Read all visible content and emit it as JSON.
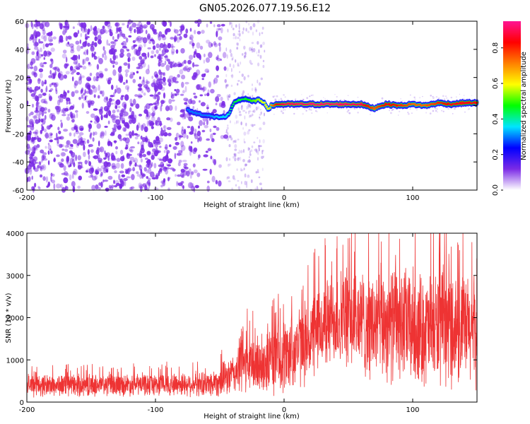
{
  "figure_title": "GN05.2026.077.19.56.E12",
  "chart_data": [
    {
      "type": "heatmap",
      "title": "GN05.2026.077.19.56.E12",
      "xlabel": "Height of straight line (km)",
      "ylabel": "Frequency (Hz)",
      "xlim": [
        -200,
        150
      ],
      "ylim": [
        -60,
        60
      ],
      "xticks": [
        -200,
        -100,
        0,
        100
      ],
      "yticks": [
        -60,
        -40,
        -20,
        0,
        20,
        40,
        60
      ],
      "colorbar": {
        "label": "Normalized spectral amplitude",
        "range": [
          0,
          0.95
        ],
        "ticks": [
          0.0,
          0.2,
          0.4,
          0.6,
          0.8
        ],
        "colormap": [
          "#ffffff",
          "#7b2be6",
          "#0000ff",
          "#00e5ff",
          "#00ff00",
          "#ffff00",
          "#ff8000",
          "#ff0000",
          "#ff1493"
        ]
      },
      "noise_region": {
        "x": [
          -200,
          -45
        ],
        "density": "high",
        "amplitude": [
          0.05,
          0.2
        ]
      },
      "sparse_noise_region": {
        "x": [
          -45,
          -15
        ]
      },
      "signal_track": {
        "x": [
          -75,
          -70,
          -65,
          -60,
          -55,
          -50,
          -45,
          -42,
          -40,
          -38,
          -35,
          -30,
          -25,
          -20,
          -15,
          -12,
          -10,
          -5,
          0,
          20,
          40,
          60,
          70,
          75,
          80,
          90,
          100,
          110,
          120,
          130,
          140,
          150
        ],
        "freq": [
          -3,
          -5,
          -6,
          -7,
          -8,
          -8,
          -8,
          -5,
          0,
          3,
          4,
          5,
          3,
          4,
          2,
          -3,
          0,
          1,
          1,
          1,
          1,
          1,
          -2,
          0,
          1,
          0,
          1,
          0,
          2,
          1,
          2,
          2
        ],
        "amplitude": [
          0.3,
          0.3,
          0.3,
          0.3,
          0.32,
          0.35,
          0.35,
          0.4,
          0.45,
          0.45,
          0.45,
          0.45,
          0.5,
          0.55,
          0.6,
          0.6,
          0.7,
          0.85,
          0.9,
          0.92,
          0.92,
          0.9,
          0.75,
          0.8,
          0.85,
          0.8,
          0.75,
          0.75,
          0.8,
          0.85,
          0.85,
          0.85
        ]
      }
    },
    {
      "type": "line",
      "xlabel": "Height of straight line (km)",
      "ylabel": "SNR (10 * v/v)",
      "xlim": [
        -200,
        150
      ],
      "ylim": [
        0,
        4000
      ],
      "xticks": [
        -200,
        -100,
        0,
        100
      ],
      "yticks": [
        0,
        1000,
        2000,
        3000,
        4000
      ],
      "color": "#ee3333",
      "envelope": {
        "x": [
          -200,
          -150,
          -100,
          -60,
          -50,
          -40,
          -35,
          -33,
          -30,
          -25,
          -20,
          -10,
          0,
          10,
          20,
          30,
          40,
          50,
          60,
          70,
          80,
          90,
          100,
          110,
          120,
          130,
          140,
          150
        ],
        "mean": [
          400,
          400,
          420,
          430,
          500,
          650,
          800,
          1100,
          900,
          850,
          900,
          1000,
          1100,
          1300,
          1500,
          1800,
          2000,
          2000,
          1900,
          1800,
          1900,
          1850,
          1800,
          1700,
          1750,
          1800,
          1700,
          1700
        ],
        "spread": [
          250,
          250,
          250,
          280,
          350,
          450,
          600,
          900,
          650,
          650,
          700,
          800,
          850,
          900,
          950,
          1000,
          1100,
          1150,
          1200,
          1250,
          1300,
          1300,
          1300,
          1250,
          1300,
          1300,
          1250,
          1200
        ]
      }
    }
  ]
}
